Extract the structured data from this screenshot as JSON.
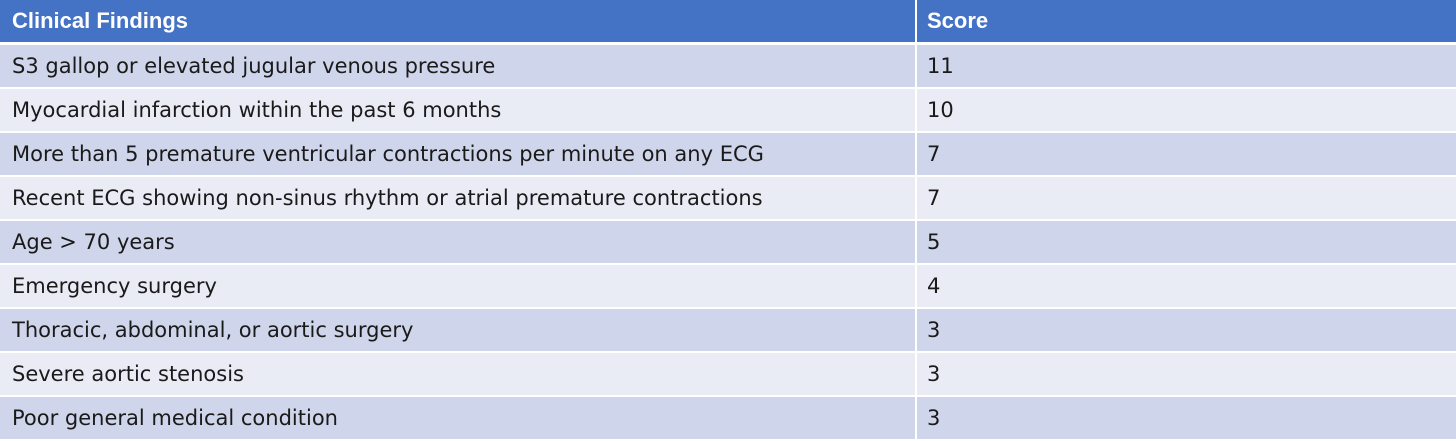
{
  "table": {
    "headers": [
      "Clinical Findings",
      "Score"
    ],
    "rows": [
      {
        "finding": "S3 gallop or elevated jugular venous pressure",
        "score": "11"
      },
      {
        "finding": "Myocardial infarction within the past 6 months",
        "score": "10"
      },
      {
        "finding": "More than 5 premature ventricular contractions per minute on any ECG",
        "score": "7"
      },
      {
        "finding": "Recent ECG showing non-sinus rhythm or atrial premature contractions",
        "score": "7"
      },
      {
        "finding": "Age > 70 years",
        "score": "5"
      },
      {
        "finding": "Emergency surgery",
        "score": "4"
      },
      {
        "finding": "Thoracic, abdominal, or aortic surgery",
        "score": "3"
      },
      {
        "finding": "Severe aortic stenosis",
        "score": "3"
      },
      {
        "finding": "Poor general medical condition",
        "score": "3"
      }
    ]
  },
  "colors": {
    "header_bg": "#4472c4",
    "row_odd_bg": "#cfd5ea",
    "row_even_bg": "#e9ebf5"
  }
}
